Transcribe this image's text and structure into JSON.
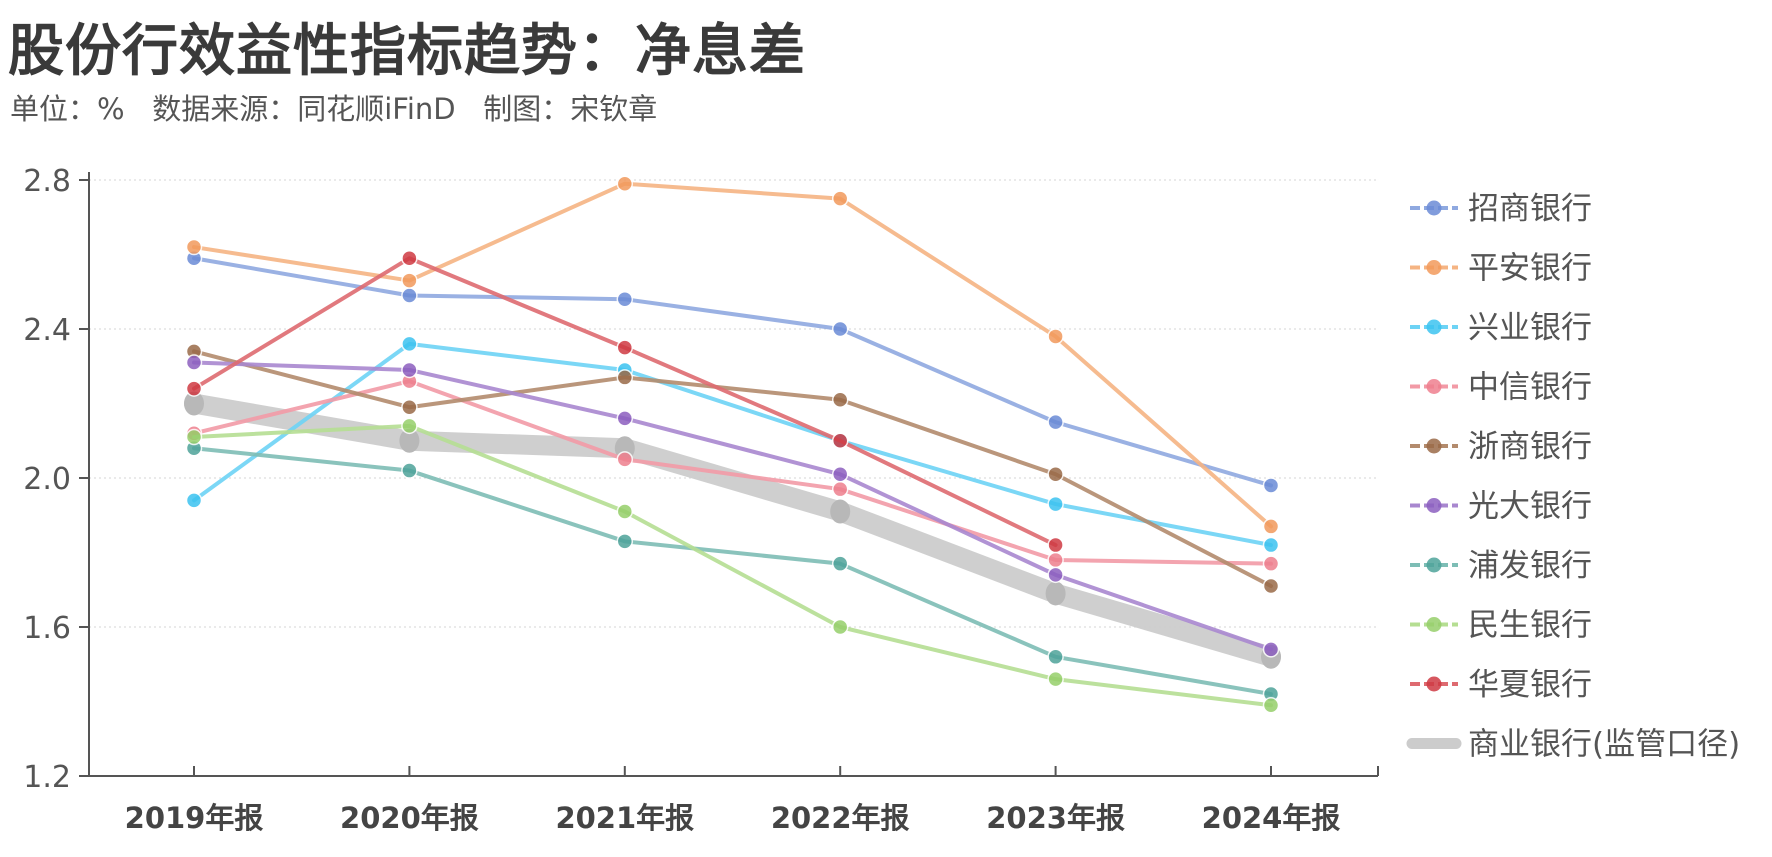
{
  "title": "股份行效益性指标趋势：净息差",
  "subtitle": "单位：%   数据来源：同花顺iFinD   制图：宋钦章",
  "chart_data": {
    "type": "line",
    "categories": [
      "2019年报",
      "2020年报",
      "2021年报",
      "2022年报",
      "2023年报",
      "2024年报"
    ],
    "ylim": [
      1.2,
      2.8
    ],
    "yticks": [
      "1.2",
      "1.6",
      "2.0",
      "2.4",
      "2.8"
    ],
    "grid": true,
    "legend": "right",
    "series": [
      {
        "name": "招商银行",
        "color": "#8fa9e0",
        "dot": "#6b8bd6",
        "values": [
          2.59,
          2.49,
          2.48,
          2.4,
          2.15,
          1.98
        ]
      },
      {
        "name": "平安银行",
        "color": "#f5b483",
        "dot": "#f29a5c",
        "values": [
          2.62,
          2.53,
          2.79,
          2.75,
          2.38,
          1.87
        ]
      },
      {
        "name": "兴业银行",
        "color": "#6dd3f5",
        "dot": "#3cc3f0",
        "values": [
          1.94,
          2.36,
          2.29,
          2.1,
          1.93,
          1.82
        ]
      },
      {
        "name": "中信银行",
        "color": "#f29aa6",
        "dot": "#ee7f8e",
        "values": [
          2.12,
          2.26,
          2.05,
          1.97,
          1.78,
          1.77
        ]
      },
      {
        "name": "浙商银行",
        "color": "#b38b6d",
        "dot": "#9a6a48",
        "values": [
          2.34,
          2.19,
          2.27,
          2.21,
          2.01,
          1.71
        ]
      },
      {
        "name": "光大银行",
        "color": "#a887cf",
        "dot": "#8c5fbf",
        "values": [
          2.31,
          2.29,
          2.16,
          2.01,
          1.74,
          1.54
        ]
      },
      {
        "name": "浦发银行",
        "color": "#7dbdb5",
        "dot": "#4ea39a",
        "values": [
          2.08,
          2.02,
          1.83,
          1.77,
          1.52,
          1.42
        ]
      },
      {
        "name": "民生银行",
        "color": "#b5de92",
        "dot": "#96cf6b",
        "values": [
          2.11,
          2.14,
          1.91,
          1.6,
          1.46,
          1.39
        ]
      },
      {
        "name": "华夏银行",
        "color": "#de6a70",
        "dot": "#cf3a43",
        "values": [
          2.24,
          2.59,
          2.35,
          2.1,
          1.82,
          null
        ]
      },
      {
        "name": "商业银行(监管口径)",
        "color": "#cccccc",
        "dot": "#bbbbbb",
        "band": true,
        "values": [
          2.2,
          2.1,
          2.08,
          1.91,
          1.69,
          1.52
        ]
      }
    ]
  }
}
